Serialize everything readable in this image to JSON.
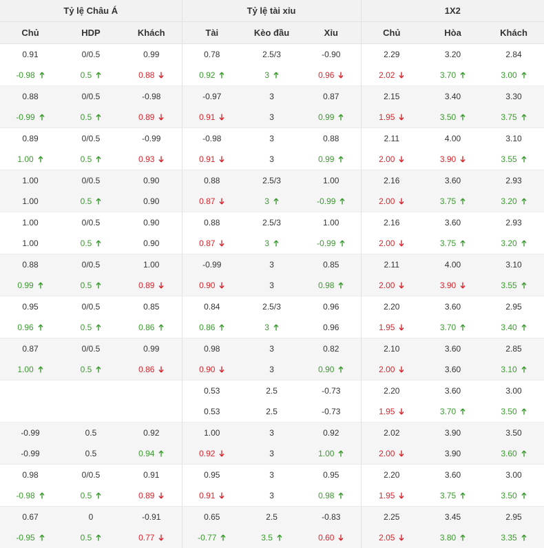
{
  "header": {
    "groups": [
      "Tỷ lệ Châu Á",
      "Tỷ lệ tài xỉu",
      "1X2"
    ],
    "columns": [
      "Chủ",
      "HDP",
      "Khách",
      "Tài",
      "Kèo đầu",
      "Xỉu",
      "Chủ",
      "Hòa",
      "Khách"
    ]
  },
  "table": {
    "rows": [
      [
        "0.91",
        "0/0.5",
        "0.99",
        "0.78",
        "2.5/3",
        "-0.90",
        "2.29",
        "3.20",
        "2.84"
      ],
      [
        {
          "t": "-0.98",
          "d": "up"
        },
        {
          "t": "0.5",
          "d": "up"
        },
        {
          "t": "0.88",
          "d": "down"
        },
        {
          "t": "0.92",
          "d": "up"
        },
        {
          "t": "3",
          "d": "up"
        },
        {
          "t": "0.96",
          "d": "down"
        },
        {
          "t": "2.02",
          "d": "down"
        },
        {
          "t": "3.70",
          "d": "up"
        },
        {
          "t": "3.00",
          "d": "up"
        }
      ],
      [
        "0.88",
        "0/0.5",
        "-0.98",
        "-0.97",
        "3",
        "0.87",
        "2.15",
        "3.40",
        "3.30"
      ],
      [
        {
          "t": "-0.99",
          "d": "up"
        },
        {
          "t": "0.5",
          "d": "up"
        },
        {
          "t": "0.89",
          "d": "down"
        },
        {
          "t": "0.91",
          "d": "down"
        },
        "3",
        {
          "t": "0.99",
          "d": "up"
        },
        {
          "t": "1.95",
          "d": "down"
        },
        {
          "t": "3.50",
          "d": "up"
        },
        {
          "t": "3.75",
          "d": "up"
        }
      ],
      [
        "0.89",
        "0/0.5",
        "-0.99",
        "-0.98",
        "3",
        "0.88",
        "2.11",
        "4.00",
        "3.10"
      ],
      [
        {
          "t": "1.00",
          "d": "up"
        },
        {
          "t": "0.5",
          "d": "up"
        },
        {
          "t": "0.93",
          "d": "down"
        },
        {
          "t": "0.91",
          "d": "down"
        },
        "3",
        {
          "t": "0.99",
          "d": "up"
        },
        {
          "t": "2.00",
          "d": "down"
        },
        {
          "t": "3.90",
          "d": "down"
        },
        {
          "t": "3.55",
          "d": "up"
        }
      ],
      [
        "1.00",
        "0/0.5",
        "0.90",
        "0.88",
        "2.5/3",
        "1.00",
        "2.16",
        "3.60",
        "2.93"
      ],
      [
        "1.00",
        {
          "t": "0.5",
          "d": "up"
        },
        "0.90",
        {
          "t": "0.87",
          "d": "down"
        },
        {
          "t": "3",
          "d": "up"
        },
        {
          "t": "-0.99",
          "d": "up"
        },
        {
          "t": "2.00",
          "d": "down"
        },
        {
          "t": "3.75",
          "d": "up"
        },
        {
          "t": "3.20",
          "d": "up"
        }
      ],
      [
        "1.00",
        "0/0.5",
        "0.90",
        "0.88",
        "2.5/3",
        "1.00",
        "2.16",
        "3.60",
        "2.93"
      ],
      [
        "1.00",
        {
          "t": "0.5",
          "d": "up"
        },
        "0.90",
        {
          "t": "0.87",
          "d": "down"
        },
        {
          "t": "3",
          "d": "up"
        },
        {
          "t": "-0.99",
          "d": "up"
        },
        {
          "t": "2.00",
          "d": "down"
        },
        {
          "t": "3.75",
          "d": "up"
        },
        {
          "t": "3.20",
          "d": "up"
        }
      ],
      [
        "0.88",
        "0/0.5",
        "1.00",
        "-0.99",
        "3",
        "0.85",
        "2.11",
        "4.00",
        "3.10"
      ],
      [
        {
          "t": "0.99",
          "d": "up"
        },
        {
          "t": "0.5",
          "d": "up"
        },
        {
          "t": "0.89",
          "d": "down"
        },
        {
          "t": "0.90",
          "d": "down"
        },
        "3",
        {
          "t": "0.98",
          "d": "up"
        },
        {
          "t": "2.00",
          "d": "down"
        },
        {
          "t": "3.90",
          "d": "down"
        },
        {
          "t": "3.55",
          "d": "up"
        }
      ],
      [
        "0.95",
        "0/0.5",
        "0.85",
        "0.84",
        "2.5/3",
        "0.96",
        "2.20",
        "3.60",
        "2.95"
      ],
      [
        {
          "t": "0.96",
          "d": "up"
        },
        {
          "t": "0.5",
          "d": "up"
        },
        {
          "t": "0.86",
          "d": "up"
        },
        {
          "t": "0.86",
          "d": "up"
        },
        {
          "t": "3",
          "d": "up"
        },
        "0.96",
        {
          "t": "1.95",
          "d": "down"
        },
        {
          "t": "3.70",
          "d": "up"
        },
        {
          "t": "3.40",
          "d": "up"
        }
      ],
      [
        "0.87",
        "0/0.5",
        "0.99",
        "0.98",
        "3",
        "0.82",
        "2.10",
        "3.60",
        "2.85"
      ],
      [
        {
          "t": "1.00",
          "d": "up"
        },
        {
          "t": "0.5",
          "d": "up"
        },
        {
          "t": "0.86",
          "d": "down"
        },
        {
          "t": "0.90",
          "d": "down"
        },
        "3",
        {
          "t": "0.90",
          "d": "up"
        },
        {
          "t": "2.00",
          "d": "down"
        },
        "3.60",
        {
          "t": "3.10",
          "d": "up"
        }
      ],
      [
        null,
        null,
        null,
        "0.53",
        "2.5",
        "-0.73",
        "2.20",
        "3.60",
        "3.00"
      ],
      [
        null,
        null,
        null,
        "0.53",
        "2.5",
        "-0.73",
        {
          "t": "1.95",
          "d": "down"
        },
        {
          "t": "3.70",
          "d": "up"
        },
        {
          "t": "3.50",
          "d": "up"
        }
      ],
      [
        "-0.99",
        "0.5",
        "0.92",
        "1.00",
        "3",
        "0.92",
        "2.02",
        "3.90",
        "3.50"
      ],
      [
        "-0.99",
        "0.5",
        {
          "t": "0.94",
          "d": "up"
        },
        {
          "t": "0.92",
          "d": "down"
        },
        "3",
        {
          "t": "1.00",
          "d": "up"
        },
        {
          "t": "2.00",
          "d": "down"
        },
        "3.90",
        {
          "t": "3.60",
          "d": "up"
        }
      ],
      [
        "0.98",
        "0/0.5",
        "0.91",
        "0.95",
        "3",
        "0.95",
        "2.20",
        "3.60",
        "3.00"
      ],
      [
        {
          "t": "-0.98",
          "d": "up"
        },
        {
          "t": "0.5",
          "d": "up"
        },
        {
          "t": "0.89",
          "d": "down"
        },
        {
          "t": "0.91",
          "d": "down"
        },
        "3",
        {
          "t": "0.98",
          "d": "up"
        },
        {
          "t": "1.95",
          "d": "down"
        },
        {
          "t": "3.75",
          "d": "up"
        },
        {
          "t": "3.50",
          "d": "up"
        }
      ],
      [
        "0.67",
        "0",
        "-0.91",
        "0.65",
        "2.5",
        "-0.83",
        "2.25",
        "3.45",
        "2.95"
      ],
      [
        {
          "t": "-0.95",
          "d": "up"
        },
        {
          "t": "0.5",
          "d": "up"
        },
        {
          "t": "0.77",
          "d": "down"
        },
        {
          "t": "-0.77",
          "d": "up"
        },
        {
          "t": "3.5",
          "d": "up"
        },
        {
          "t": "0.60",
          "d": "down"
        },
        {
          "t": "2.05",
          "d": "down"
        },
        {
          "t": "3.80",
          "d": "up"
        },
        {
          "t": "3.35",
          "d": "up"
        }
      ]
    ]
  }
}
